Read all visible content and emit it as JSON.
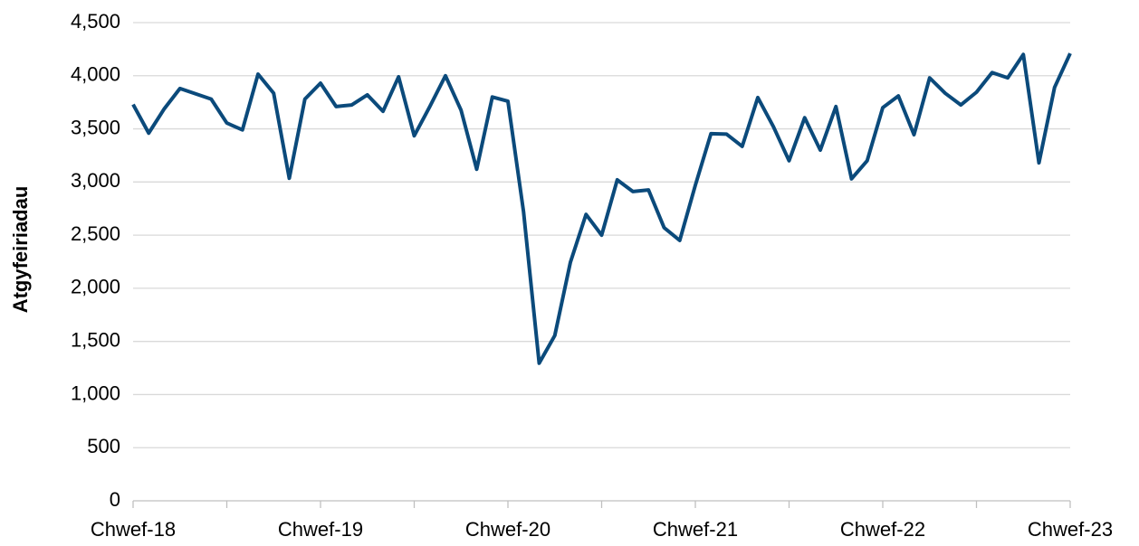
{
  "chart_data": {
    "type": "line",
    "y_label": "Atgyfeiriadau",
    "categories": [
      "Chwef-18",
      null,
      null,
      null,
      null,
      null,
      null,
      null,
      null,
      null,
      null,
      null,
      "Chwef-19",
      null,
      null,
      null,
      null,
      null,
      null,
      null,
      null,
      null,
      null,
      null,
      "Chwef-20",
      null,
      null,
      null,
      null,
      null,
      null,
      null,
      null,
      null,
      null,
      null,
      "Chwef-21",
      null,
      null,
      null,
      null,
      null,
      null,
      null,
      null,
      null,
      null,
      null,
      "Chwef-22",
      null,
      null,
      null,
      null,
      null,
      null,
      null,
      null,
      null,
      null,
      null,
      "Chwef-23"
    ],
    "series": [
      {
        "name": "Atgyfeiriadau",
        "color": "#0b4a7b",
        "values": [
          3730,
          3460,
          3690,
          3880,
          3830,
          3780,
          3555,
          3490,
          4015,
          3835,
          3035,
          3780,
          3930,
          3710,
          3725,
          3820,
          3665,
          3990,
          3435,
          3710,
          4000,
          3675,
          3120,
          3800,
          3760,
          2720,
          1295,
          1555,
          2245,
          2695,
          2500,
          3020,
          2910,
          2925,
          2570,
          2450,
          2970,
          3455,
          3450,
          3335,
          3795,
          3520,
          3200,
          3605,
          3300,
          3710,
          3030,
          3200,
          3700,
          3810,
          3445,
          3980,
          3835,
          3725,
          3845,
          4030,
          3980,
          4200,
          3180,
          3890,
          4210
        ]
      }
    ],
    "ylim": [
      0,
      4500
    ],
    "yticks": [
      0,
      500,
      {
        "value": 1000,
        "label": "1,000"
      },
      {
        "value": 1500,
        "label": "1,500"
      },
      {
        "value": 2000,
        "label": "2,000"
      },
      {
        "value": 2500,
        "label": "2,500"
      },
      {
        "value": 3000,
        "label": "3,000"
      },
      {
        "value": 3500,
        "label": "3,500"
      },
      {
        "value": 4000,
        "label": "4,000"
      },
      {
        "value": 4500,
        "label": "4,500"
      }
    ],
    "grid": true
  }
}
